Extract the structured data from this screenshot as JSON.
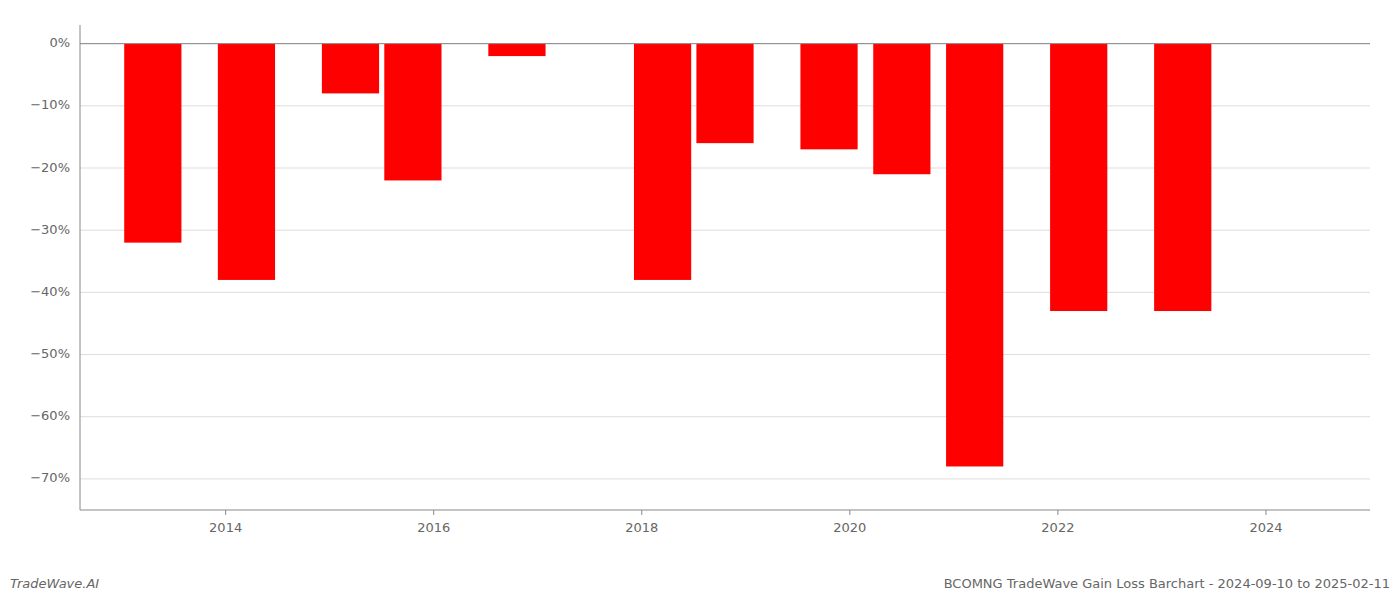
{
  "chart_data": {
    "type": "bar",
    "title": "BCOMNG TradeWave Gain Loss Barchart - 2024-09-10 to 2025-02-11",
    "annotations": [
      "TradeWave.AI"
    ],
    "x": [
      2013.3,
      2014.2,
      2015.2,
      2015.8,
      2016.8,
      2018.2,
      2018.8,
      2019.8,
      2020.5,
      2021.2,
      2022.2,
      2023.2
    ],
    "values": [
      -32,
      -38,
      -8,
      -22,
      -2,
      -38,
      -16,
      -17,
      -21,
      -68,
      -43,
      -43
    ],
    "color": "#ff0000",
    "xlim": [
      2012.6,
      2025.0
    ],
    "xticks": [
      2014,
      2016,
      2018,
      2020,
      2022,
      2024
    ],
    "ylim": [
      -75,
      3
    ],
    "yticks": [
      {
        "value": 0,
        "label": "0%"
      },
      {
        "value": -10,
        "label": "−10%"
      },
      {
        "value": -20,
        "label": "−20%"
      },
      {
        "value": -30,
        "label": "−30%"
      },
      {
        "value": -40,
        "label": "−40%"
      },
      {
        "value": -50,
        "label": "−50%"
      },
      {
        "value": -60,
        "label": "−60%"
      },
      {
        "value": -70,
        "label": "−70%"
      }
    ],
    "grid": true
  }
}
